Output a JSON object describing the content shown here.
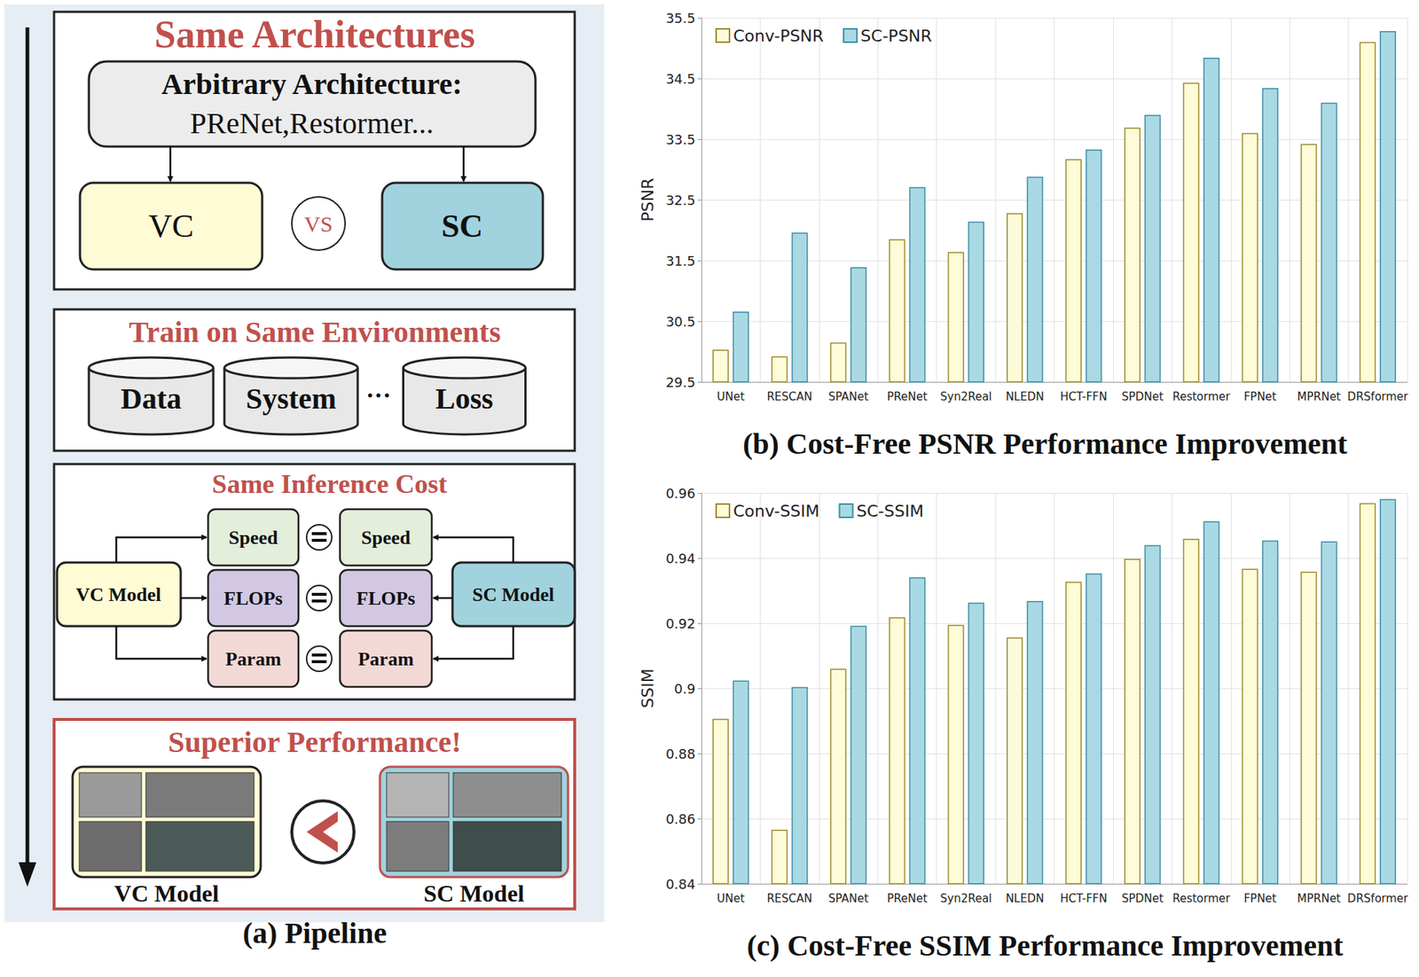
{
  "chart_data": [
    {
      "type": "bar",
      "title": "(b) Cost-Free PSNR Performance Improvement",
      "y_label": "PSNR",
      "categories": [
        "UNet",
        "RESCAN",
        "SPANet",
        "PReNet",
        "Syn2Real",
        "NLEDN",
        "HCT-FFN",
        "SPDNet",
        "Restormer",
        "FPNet",
        "MPRNet",
        "DRSformer"
      ],
      "series": [
        {
          "name": "Conv-PSNR",
          "color": "#fdfbd8",
          "values": [
            30.03,
            29.92,
            30.15,
            31.85,
            31.64,
            32.28,
            33.17,
            33.69,
            34.43,
            33.6,
            33.42,
            35.1
          ]
        },
        {
          "name": "SC-PSNR",
          "color": "#a9d9e3",
          "values": [
            30.66,
            31.96,
            31.39,
            32.71,
            32.14,
            32.88,
            33.33,
            33.9,
            34.84,
            34.34,
            34.1,
            35.28
          ]
        }
      ],
      "ylim": [
        29.5,
        35.5
      ],
      "yticks": [
        29.5,
        30.5,
        31.5,
        32.5,
        33.5,
        34.5,
        35.5
      ],
      "grid": true,
      "legend": "top-left"
    },
    {
      "type": "bar",
      "title": "(c) Cost-Free SSIM Performance Improvement",
      "y_label": "SSIM",
      "categories": [
        "UNet",
        "RESCAN",
        "SPANet",
        "PReNet",
        "Syn2Real",
        "NLEDN",
        "HCT-FFN",
        "SPDNet",
        "Restormer",
        "FPNet",
        "MPRNet",
        "DRSformer"
      ],
      "series": [
        {
          "name": "Conv-SSIM",
          "color": "#fdfbd8",
          "values": [
            0.8906,
            0.8566,
            0.906,
            0.9218,
            0.9195,
            0.9156,
            0.9327,
            0.9398,
            0.9459,
            0.9367,
            0.9358,
            0.9569
          ]
        },
        {
          "name": "SC-SSIM",
          "color": "#a9d9e3",
          "values": [
            0.9024,
            0.9004,
            0.9192,
            0.9341,
            0.9263,
            0.9268,
            0.9353,
            0.944,
            0.9513,
            0.9454,
            0.9451,
            0.9581
          ]
        }
      ],
      "ylim": [
        0.84,
        0.96
      ],
      "yticks": [
        0.84,
        0.86,
        0.88,
        0.9,
        0.92,
        0.94,
        0.96
      ],
      "grid": true,
      "legend": "top-left"
    }
  ],
  "pipeline": {
    "caption": "(a) Pipeline",
    "architectures": {
      "title": "Same Architectures",
      "heading": "Arbitrary Architecture:",
      "examples": "PReNet,Restormer...",
      "left": "VC",
      "versus": "VS",
      "right": "SC"
    },
    "environments": {
      "title": "Train on Same Environments",
      "items": [
        "Data",
        "System",
        "Loss"
      ],
      "ellipsis": "···"
    },
    "cost": {
      "title": "Same Inference Cost",
      "left": "VC Model",
      "right": "SC Model",
      "metrics": [
        "Speed",
        "FLOPs",
        "Param"
      ]
    },
    "performance": {
      "title": "Superior Performance!",
      "left": "VC Model",
      "right": "SC Model"
    }
  }
}
